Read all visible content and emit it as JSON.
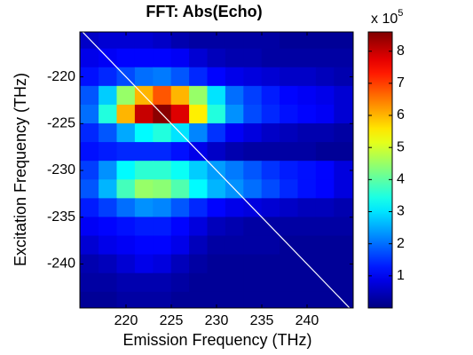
{
  "chart_data": {
    "type": "contour",
    "title": "FFT: Abs(Echo)",
    "xlabel": "Emission Frequency (THz)",
    "ylabel": "Excitation Frequency (THz)",
    "colorbar_label": "x 10",
    "colorbar_exponent": "5",
    "colormap": "jet",
    "xlim": [
      214.9,
      245.1
    ],
    "ylim": [
      -244.7,
      -215.2
    ],
    "xticks": [
      220,
      225,
      230,
      235,
      240
    ],
    "yticks": [
      -240,
      -235,
      -230,
      -225,
      -220
    ],
    "clim": [
      0,
      8.6
    ],
    "cticks": [
      1,
      2,
      3,
      4,
      5,
      6,
      7,
      8
    ],
    "x": [
      216,
      218,
      220,
      222,
      224,
      226,
      228,
      230,
      232,
      234,
      236,
      238,
      240,
      242,
      244
    ],
    "y": [
      -216,
      -218,
      -220,
      -222,
      -224,
      -226,
      -228,
      -230,
      -232,
      -234,
      -236,
      -238,
      -240,
      -242,
      -244
    ],
    "z": [
      [
        0.6,
        0.7,
        0.7,
        0.7,
        0.6,
        0.4,
        0.3,
        0.3,
        0.3,
        0.3,
        0.3,
        0.2,
        0.2,
        0.2,
        0.2
      ],
      [
        0.9,
        1.0,
        1.1,
        1.1,
        1.1,
        1.0,
        0.7,
        0.5,
        0.4,
        0.4,
        0.3,
        0.3,
        0.3,
        0.3,
        0.3
      ],
      [
        1.2,
        1.4,
        1.7,
        2.0,
        2.1,
        1.8,
        1.4,
        1.1,
        0.9,
        0.8,
        0.7,
        0.6,
        0.6,
        0.5,
        0.4
      ],
      [
        1.8,
        2.8,
        4.5,
        6.0,
        6.8,
        6.0,
        4.5,
        3.0,
        2.0,
        1.6,
        1.3,
        1.1,
        1.0,
        0.9,
        0.7
      ],
      [
        2.0,
        3.5,
        6.0,
        8.0,
        8.5,
        7.8,
        5.5,
        3.5,
        2.3,
        1.7,
        1.4,
        1.2,
        1.1,
        1.0,
        0.7
      ],
      [
        1.4,
        1.8,
        2.5,
        3.2,
        3.5,
        3.0,
        2.2,
        1.5,
        1.0,
        0.8,
        0.6,
        0.5,
        0.4,
        0.4,
        0.3
      ],
      [
        1.2,
        1.3,
        1.4,
        1.4,
        1.4,
        1.2,
        0.9,
        0.6,
        0.4,
        0.3,
        0.3,
        0.3,
        0.3,
        0.2,
        0.2
      ],
      [
        1.6,
        2.3,
        3.2,
        3.6,
        3.6,
        3.3,
        2.8,
        2.4,
        2.1,
        1.8,
        1.5,
        1.3,
        1.2,
        1.1,
        0.8
      ],
      [
        1.8,
        2.6,
        3.8,
        4.5,
        4.4,
        3.9,
        3.2,
        2.6,
        2.3,
        2.0,
        1.7,
        1.4,
        1.2,
        1.1,
        0.8
      ],
      [
        1.3,
        1.6,
        2.0,
        2.3,
        2.2,
        1.8,
        1.4,
        1.1,
        0.9,
        0.8,
        0.7,
        0.6,
        0.5,
        0.5,
        0.4
      ],
      [
        1.0,
        1.1,
        1.2,
        1.3,
        1.3,
        1.1,
        0.8,
        0.5,
        0.4,
        0.3,
        0.3,
        0.3,
        0.3,
        0.3,
        0.3
      ],
      [
        0.7,
        0.9,
        1.0,
        1.1,
        1.1,
        0.9,
        0.5,
        0.3,
        0.3,
        0.3,
        0.3,
        0.2,
        0.2,
        0.2,
        0.2
      ],
      [
        0.4,
        0.5,
        0.7,
        0.9,
        0.8,
        0.5,
        0.3,
        0.2,
        0.2,
        0.2,
        0.2,
        0.2,
        0.2,
        0.2,
        0.2
      ],
      [
        0.3,
        0.3,
        0.4,
        0.4,
        0.4,
        0.3,
        0.2,
        0.2,
        0.2,
        0.2,
        0.2,
        0.2,
        0.2,
        0.2,
        0.2
      ],
      [
        0.2,
        0.2,
        0.3,
        0.3,
        0.3,
        0.2,
        0.2,
        0.2,
        0.2,
        0.2,
        0.2,
        0.2,
        0.2,
        0.2,
        0.2
      ]
    ],
    "diagonal": {
      "x": [
        215.2,
        244.7
      ],
      "y": [
        -215.2,
        -244.7
      ],
      "color": "#ffffff"
    }
  }
}
